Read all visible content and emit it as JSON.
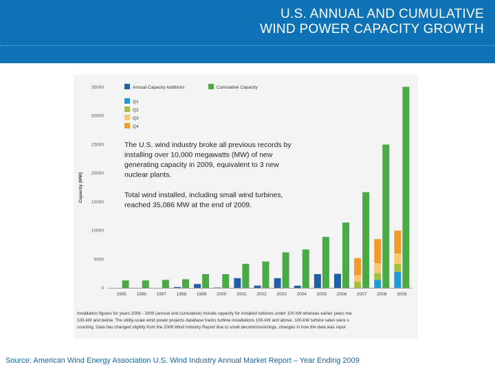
{
  "header": {
    "title_line1": "U.S. ANNUAL AND CUMULATIVE",
    "title_line2": "WIND POWER CAPACITY GROWTH"
  },
  "chart_data": {
    "type": "bar",
    "ylabel": "Capacity (MW)",
    "ylim": [
      0,
      35000
    ],
    "yticks": [
      "35000",
      "30000",
      "25000",
      "20000",
      "15000",
      "10000",
      "5000",
      "0"
    ],
    "categories": [
      "1995",
      "1996",
      "1997",
      "1998",
      "1999",
      "2000",
      "2001",
      "2002",
      "2003",
      "2004",
      "2005",
      "2006",
      "2007",
      "2008",
      "2009"
    ],
    "series": [
      {
        "name": "Annual Capacity Additions",
        "color": "#1f5fa8",
        "values": [
          0,
          0,
          0,
          150,
          670,
          60,
          1700,
          400,
          1690,
          380,
          2400,
          2450,
          0,
          0,
          0
        ]
      },
      {
        "name": "Cumulative Capacity",
        "color": "#4aaa46",
        "values": [
          1300,
          1300,
          1400,
          1500,
          2400,
          2400,
          4200,
          4600,
          6200,
          6700,
          8900,
          11400,
          16700,
          25000,
          35086
        ]
      }
    ],
    "quarterly": {
      "categories": [
        "2007",
        "2008",
        "2009"
      ],
      "series": [
        {
          "name": "Q1",
          "color": "#1e9bd6",
          "values": [
            0,
            1400,
            2800
          ]
        },
        {
          "name": "Q2",
          "color": "#a5c13b",
          "values": [
            1100,
            1200,
            1400
          ]
        },
        {
          "name": "Q3",
          "color": "#fac870",
          "values": [
            1100,
            1700,
            1800
          ]
        },
        {
          "name": "Q4",
          "color": "#f39a29",
          "values": [
            3000,
            4200,
            4000
          ]
        }
      ]
    },
    "annotations": [
      {
        "lines": [
          "The U.S. wind industry broke all previous records by",
          "installing over 10,000 megawatts (MW) of new",
          "generating capacity in 2009, equivalent to 3 new",
          "nuclear plants."
        ]
      },
      {
        "lines": [
          "Total wind installed, including small wind turbines,",
          "reached 35,086 MW at the end of 2009."
        ]
      }
    ]
  },
  "footnote": {
    "lines": [
      "Installation figures for years 2006 - 2009 (annual and cumulative) include capacity for installed turbines under 100 kW whereas earlier years ma",
      "100-kW and below. The utility-scale wind power projects database tracks turbine installations 100-kW and above. 100-kW turbine sales were s",
      "counting. Data has changed slightly from the 2008 Wind Industry Report due to small decommissionings, changes in how the data was repor"
    ]
  },
  "source": "Source: American Wind Energy Association U.S. Wind Industry Annual Market Report – Year Ending 2009"
}
